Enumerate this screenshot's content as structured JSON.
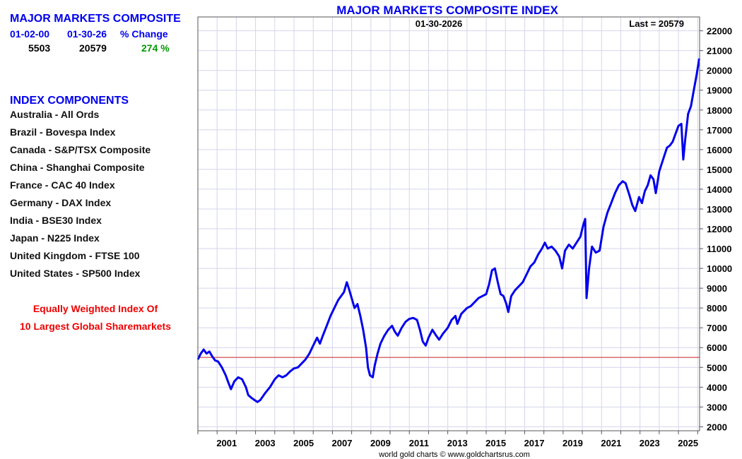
{
  "summary": {
    "title": "MAJOR MARKETS COMPOSITE",
    "headers": [
      "01-02-00",
      "01-30-26",
      "% Change"
    ],
    "values": [
      "5503",
      "20579",
      "274 %"
    ],
    "change_color": "#009900"
  },
  "components": {
    "title": "INDEX COMPONENTS",
    "items": [
      "Australia - All Ords",
      "Brazil - Bovespa Index",
      "Canada - S&P/TSX Composite",
      "China - Shanghai Composite",
      "France - CAC 40 Index",
      "Germany - DAX Index",
      "India - BSE30 Index",
      "Japan - N225 Index",
      "United Kingdom - FTSE 100",
      "United States - SP500 Index"
    ]
  },
  "note": {
    "line1": "Equally Weighted Index Of",
    "line2": "10 Largest Global Sharemarkets"
  },
  "chart_data": {
    "type": "line",
    "title": "MAJOR MARKETS COMPOSITE INDEX",
    "date_label": "01-30-2026",
    "last_label": "Last = 20579",
    "footer": "world gold charts © www.goldchartsrus.com",
    "ylim": [
      1800,
      22700
    ],
    "xlim": [
      2000.0,
      2026.1
    ],
    "yticks": [
      2000,
      3000,
      4000,
      5000,
      6000,
      7000,
      8000,
      9000,
      10000,
      11000,
      12000,
      13000,
      14000,
      15000,
      16000,
      17000,
      18000,
      19000,
      20000,
      21000,
      22000
    ],
    "xtick_labels": [
      "2001",
      "2003",
      "2005",
      "2007",
      "2009",
      "2011",
      "2013",
      "2015",
      "2017",
      "2019",
      "2021",
      "2023",
      "2025"
    ],
    "reference_line": 5503,
    "grid": true,
    "line_color": "#0000ee",
    "ref_color": "#cc2222",
    "series": [
      {
        "x": [
          2000.0,
          2000.15,
          2000.3,
          2000.45,
          2000.6,
          2000.75,
          2000.9,
          2001.05,
          2001.25,
          2001.45,
          2001.6,
          2001.72,
          2001.9,
          2002.1,
          2002.3,
          2002.5,
          2002.62,
          2002.8,
          2002.95,
          2003.1,
          2003.25,
          2003.5,
          2003.75,
          2004.0,
          2004.2,
          2004.4,
          2004.6,
          2004.8,
          2005.0,
          2005.2,
          2005.4,
          2005.6,
          2005.8,
          2006.0,
          2006.2,
          2006.35,
          2006.5,
          2006.7,
          2006.9,
          2007.1,
          2007.3,
          2007.45,
          2007.6,
          2007.75,
          2007.85,
          2008.0,
          2008.15,
          2008.3,
          2008.45,
          2008.6,
          2008.75,
          2008.85,
          2008.95,
          2009.1,
          2009.2,
          2009.35,
          2009.5,
          2009.7,
          2009.9,
          2010.1,
          2010.25,
          2010.4,
          2010.6,
          2010.8,
          2011.0,
          2011.2,
          2011.4,
          2011.55,
          2011.7,
          2011.85,
          2012.0,
          2012.2,
          2012.4,
          2012.55,
          2012.75,
          2013.0,
          2013.2,
          2013.4,
          2013.5,
          2013.7,
          2014.0,
          2014.2,
          2014.4,
          2014.6,
          2014.8,
          2015.0,
          2015.15,
          2015.3,
          2015.45,
          2015.6,
          2015.75,
          2015.9,
          2016.05,
          2016.15,
          2016.3,
          2016.5,
          2016.7,
          2016.9,
          2017.1,
          2017.3,
          2017.5,
          2017.7,
          2017.9,
          2018.05,
          2018.2,
          2018.4,
          2018.6,
          2018.8,
          2018.95,
          2019.1,
          2019.3,
          2019.5,
          2019.7,
          2019.9,
          2020.05,
          2020.15,
          2020.22,
          2020.35,
          2020.5,
          2020.7,
          2020.9,
          2021.1,
          2021.3,
          2021.5,
          2021.7,
          2021.9,
          2022.1,
          2022.25,
          2022.45,
          2022.6,
          2022.75,
          2022.95,
          2023.1,
          2023.25,
          2023.4,
          2023.55,
          2023.7,
          2023.82,
          2024.0,
          2024.2,
          2024.4,
          2024.55,
          2024.7,
          2024.85,
          2025.0,
          2025.15,
          2025.25,
          2025.35,
          2025.5,
          2025.65,
          2025.8,
          2025.95,
          2026.08
        ],
        "y": [
          5400,
          5700,
          5900,
          5700,
          5800,
          5550,
          5350,
          5300,
          5000,
          4600,
          4200,
          3900,
          4300,
          4500,
          4400,
          4000,
          3600,
          3450,
          3350,
          3250,
          3350,
          3700,
          4000,
          4400,
          4600,
          4500,
          4600,
          4800,
          4950,
          5000,
          5200,
          5400,
          5700,
          6100,
          6500,
          6200,
          6600,
          7100,
          7600,
          8000,
          8400,
          8600,
          8800,
          9300,
          9000,
          8500,
          8000,
          8200,
          7600,
          6900,
          6000,
          5000,
          4600,
          4500,
          5100,
          5700,
          6200,
          6600,
          6900,
          7100,
          6800,
          6600,
          7000,
          7300,
          7450,
          7500,
          7400,
          6900,
          6300,
          6100,
          6500,
          6900,
          6600,
          6400,
          6700,
          7000,
          7400,
          7600,
          7200,
          7700,
          8000,
          8100,
          8300,
          8500,
          8600,
          8700,
          9200,
          9900,
          10000,
          9300,
          8700,
          8600,
          8200,
          7800,
          8600,
          8900,
          9100,
          9300,
          9700,
          10100,
          10300,
          10700,
          11000,
          11300,
          11000,
          11100,
          10900,
          10600,
          10000,
          10900,
          11200,
          11000,
          11300,
          11600,
          12200,
          12500,
          8500,
          10000,
          11100,
          10800,
          10900,
          12100,
          12800,
          13300,
          13800,
          14200,
          14400,
          14300,
          13700,
          13200,
          12900,
          13600,
          13300,
          13900,
          14200,
          14700,
          14500,
          13800,
          14900,
          15500,
          16100,
          16200,
          16400,
          16800,
          17200,
          17300,
          15500,
          16500,
          17800,
          18200,
          19000,
          19800,
          20600
        ]
      }
    ]
  }
}
